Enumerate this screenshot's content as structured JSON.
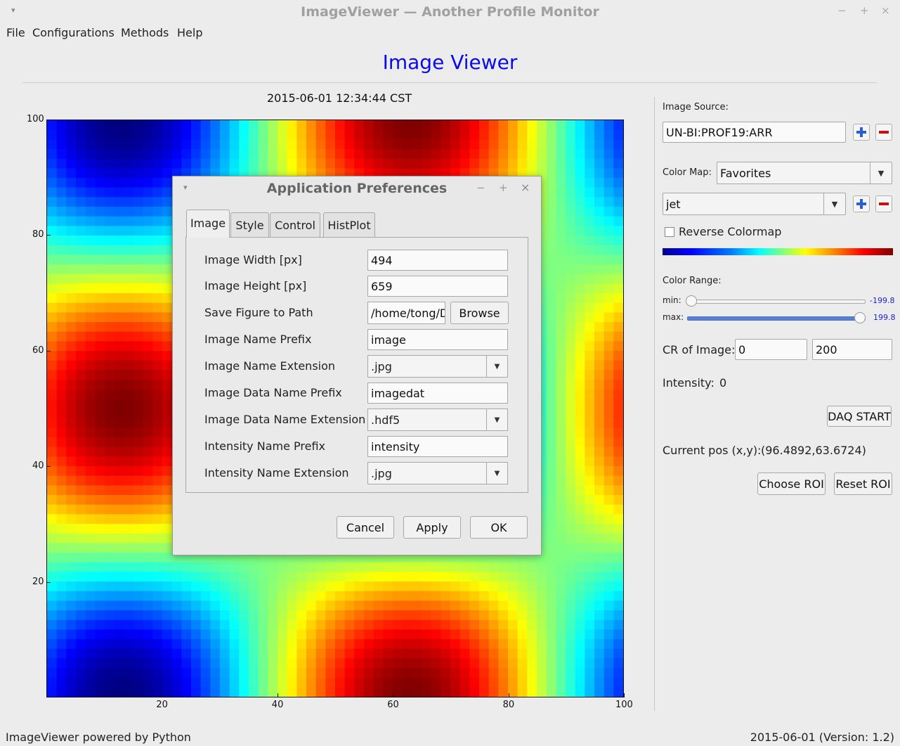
{
  "window": {
    "title": "ImageViewer — Another Profile Monitor",
    "minimize": "−",
    "maximize": "+",
    "close": "×",
    "menu_glyph": "▾"
  },
  "menubar": {
    "items": [
      "File",
      "Configurations",
      "Methods",
      "Help"
    ]
  },
  "header": {
    "title": "Image Viewer"
  },
  "plot": {
    "timestamp": "2015-06-01 12:34:44 CST",
    "colormap": "jet",
    "xlim": [
      0,
      100
    ],
    "ylim": [
      0,
      100
    ],
    "xticks": [
      "20",
      "40",
      "60",
      "80",
      "100"
    ],
    "yticks": [
      "20",
      "40",
      "60",
      "80",
      "100"
    ]
  },
  "side": {
    "image_source_label": "Image Source:",
    "image_source_value": "UN-BI:PROF19:ARR",
    "color_map_label": "Color Map:",
    "color_map_group": "Favorites",
    "color_map_value": "jet",
    "reverse_label": "Reverse Colormap",
    "reverse_checked": false,
    "color_range_label": "Color Range:",
    "min_label": "min:",
    "min_value": "-199.8",
    "max_label": "max:",
    "max_value": "199.8",
    "cr_label": "CR of Image:",
    "cr_min": "0",
    "cr_max": "200",
    "intensity_label": "Intensity:",
    "intensity_value": "0",
    "daq_button": "DAQ START",
    "pos_label": "Current pos (x,y):",
    "pos_value": "(96.4892,63.6724)",
    "choose_roi": "Choose ROI",
    "reset_roi": "Reset ROI",
    "icons": {
      "add": "plus-icon",
      "remove": "minus-icon"
    },
    "colors": {
      "add": "#2b5fcf",
      "remove": "#c81010",
      "slider_value": "#2020d0"
    }
  },
  "dialog": {
    "title": "Application Preferences",
    "tabs": [
      "Image",
      "Style",
      "Control",
      "HistPlot"
    ],
    "active_tab": "Image",
    "rows": {
      "image_width_label": "Image Width [px]",
      "image_width_value": "494",
      "image_height_label": "Image Height [px]",
      "image_height_value": "659",
      "save_path_label": "Save Figure to Path",
      "save_path_value": "/home/tong/D",
      "browse": "Browse",
      "name_prefix_label": "Image Name Prefix",
      "name_prefix_value": "image",
      "name_ext_label": "Image Name Extension",
      "name_ext_value": ".jpg",
      "data_prefix_label": "Image Data Name Prefix",
      "data_prefix_value": "imagedat",
      "data_ext_label": "Image Data Name Extension",
      "data_ext_value": ".hdf5",
      "int_prefix_label": "Intensity Name Prefix",
      "int_prefix_value": "intensity",
      "int_ext_label": "Intensity Name Extension",
      "int_ext_value": ".jpg"
    },
    "cancel": "Cancel",
    "apply": "Apply",
    "ok": "OK"
  },
  "status": {
    "left": "ImageViewer powered by Python",
    "right": "2015-06-01 (Version: 1.2)"
  }
}
